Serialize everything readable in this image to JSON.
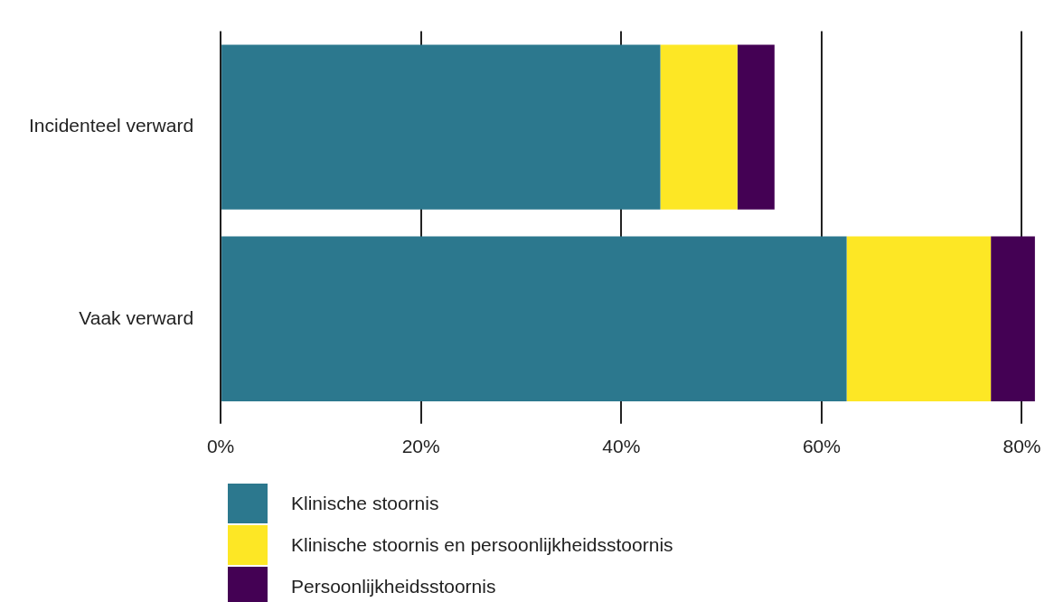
{
  "chart_data": {
    "type": "bar",
    "orientation": "horizontal",
    "stacked": true,
    "categories": [
      "Incidenteel verward",
      "Vaak verward"
    ],
    "series": [
      {
        "name": "Klinische stoornis",
        "color": "#2c788e",
        "values": [
          43.9,
          62.5
        ]
      },
      {
        "name": "Klinische stoornis en persoonlijkheidsstoornis",
        "color": "#fde725",
        "values": [
          7.7,
          14.4
        ]
      },
      {
        "name": "Persoonlijkheidsstoornis",
        "color": "#440154",
        "values": [
          3.7,
          4.4
        ]
      }
    ],
    "xlim": [
      0,
      81.4
    ],
    "xticks": [
      {
        "value": 0,
        "label": "0%"
      },
      {
        "value": 20,
        "label": "20%"
      },
      {
        "value": 40,
        "label": "40%"
      },
      {
        "value": 60,
        "label": "60%"
      },
      {
        "value": 80,
        "label": "80%"
      }
    ],
    "grid": "x",
    "legend": "bottom"
  }
}
